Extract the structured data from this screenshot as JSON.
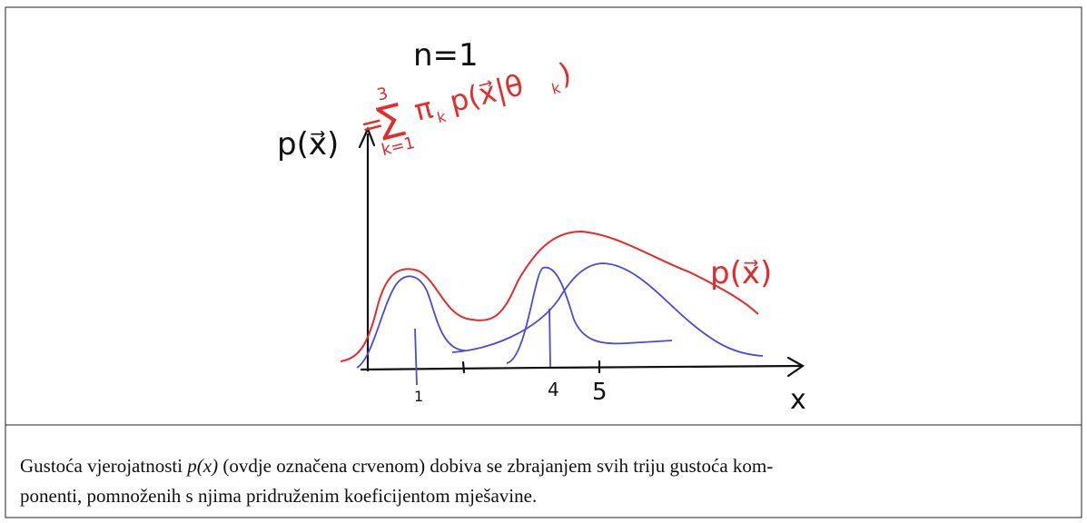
{
  "figure": {
    "annotations": {
      "n_value": "n=1",
      "mixture_eq": "=",
      "mixture_sum": "∑",
      "mixture_upper": "3",
      "mixture_lower": "k=1",
      "mixture_terms": "π",
      "mixture_k": "k",
      "mixture_rest": "p(x⃗|θ",
      "mixture_rest_k": "k",
      "mixture_close": ")",
      "y_axis_label": "p(x⃗)",
      "curve_label": "p(x⃗)",
      "x_axis_label": "x"
    },
    "x_ticks": [
      "1",
      "4",
      "5"
    ]
  },
  "caption": {
    "before": "Gustoća vjerojatnosti ",
    "math": "p(x)",
    "after": " (ovdje označena crvenom) dobiva se zbrajanjem svih triju gustoća kom-",
    "line2": "ponenti, pomnoženih s njima pridruženim koeficijentom mješavine."
  }
}
